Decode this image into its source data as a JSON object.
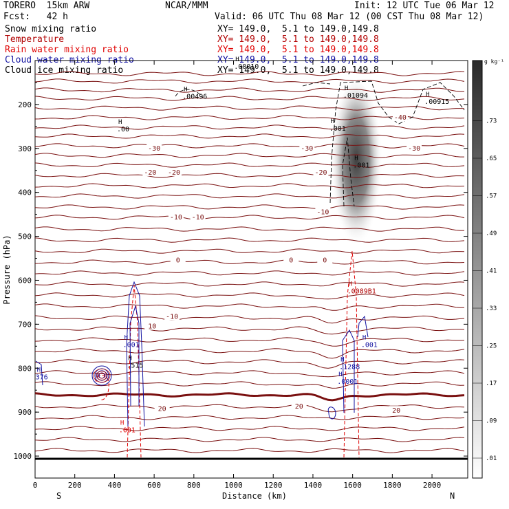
{
  "header": {
    "model": "TORERO  15km ARW",
    "center": "NCAR/MMM",
    "init": "Init: 12 UTC Tue 06 Mar 12",
    "fcst": "Fcst:   42 h",
    "valid": "Valid: 06 UTC Thu 08 Mar 12 (00 CST Thu 08 Mar 12)",
    "fields": [
      {
        "label": "Snow mixing ratio",
        "xy": "XY= 149.0,  5.1 to 149.0,149.8",
        "color": "#000000"
      },
      {
        "label": "Temperature",
        "xy": "XY= 149.0,  5.1 to 149.0,149.8",
        "color": "#b00000"
      },
      {
        "label": "Rain water mixing ratio",
        "xy": "XY= 149.0,  5.1 to 149.0,149.8",
        "color": "#e00000"
      },
      {
        "label": "Cloud water mixing ratio",
        "xy": "XY= 149.0,  5.1 to 149.0,149.8",
        "color": "#1010a0"
      },
      {
        "label": "Cloud ice mixing ratio",
        "xy": "XY= 149.0,  5.1 to 149.0,149.8",
        "color": "#000000"
      }
    ]
  },
  "chart_data": {
    "type": "contour cross-section",
    "xlabel": "Distance (km)",
    "ylabel": "Pressure (hPa)",
    "xlim": [
      0,
      2180
    ],
    "ylim": [
      1050,
      100
    ],
    "x_ticks": [
      0,
      200,
      400,
      600,
      800,
      1000,
      1200,
      1400,
      1600,
      1800,
      2000
    ],
    "y_ticks": [
      200,
      300,
      400,
      500,
      600,
      700,
      800,
      900,
      1000
    ],
    "x_end_labels": {
      "left": "S",
      "right": "N"
    },
    "colorbar": {
      "unit": "g kg⁻¹",
      "labels": [
        ".01",
        ".09",
        ".17",
        ".25",
        ".33",
        ".41",
        ".49",
        ".57",
        ".65",
        ".73"
      ]
    },
    "temperature_labels": [
      {
        "text": "-40",
        "x": 1840,
        "p": 230
      },
      {
        "text": "-30",
        "x": 600,
        "p": 300
      },
      {
        "text": "-30",
        "x": 1370,
        "p": 300
      },
      {
        "text": "-30",
        "x": 1910,
        "p": 300
      },
      {
        "text": "-20",
        "x": 580,
        "p": 355
      },
      {
        "text": "-20",
        "x": 700,
        "p": 355
      },
      {
        "text": "-20",
        "x": 1440,
        "p": 355
      },
      {
        "text": "-10",
        "x": 710,
        "p": 457
      },
      {
        "text": "-10",
        "x": 820,
        "p": 457
      },
      {
        "text": "-10",
        "x": 1450,
        "p": 445
      },
      {
        "text": "0",
        "x": 720,
        "p": 555
      },
      {
        "text": "0",
        "x": 1290,
        "p": 555
      },
      {
        "text": "0",
        "x": 1460,
        "p": 555
      },
      {
        "text": "10",
        "x": 590,
        "p": 705
      },
      {
        "text": "-10",
        "x": 690,
        "p": 683
      },
      {
        "text": "20",
        "x": 640,
        "p": 893
      },
      {
        "text": "20",
        "x": 1330,
        "p": 887
      },
      {
        "text": "20",
        "x": 1820,
        "p": 897
      }
    ],
    "maxima_labels": [
      {
        "text": ".00496",
        "x": 770,
        "p": 185,
        "color": "#000000"
      },
      {
        "text": ".01094",
        "x": 1580,
        "p": 183,
        "color": "#000000"
      },
      {
        "text": ".00915",
        "x": 1990,
        "p": 197,
        "color": "#000000"
      },
      {
        "text": ".00",
        "x": 440,
        "p": 260,
        "color": "#000000"
      },
      {
        "text": ".00010",
        "x": 1030,
        "p": 117,
        "color": "#000000"
      },
      {
        "text": ".001",
        "x": 1510,
        "p": 258,
        "color": "#000000"
      },
      {
        "text": ".001",
        "x": 1630,
        "p": 342,
        "color": "#000000"
      },
      {
        "text": ".0089B1",
        "x": 1600,
        "p": 628,
        "color": "#b00000"
      },
      {
        "text": ".001",
        "x": 470,
        "p": 750,
        "color": "#1010a0"
      },
      {
        "text": ".515",
        "x": 490,
        "p": 797,
        "color": "#000000"
      },
      {
        "text": ".1288",
        "x": 1560,
        "p": 800,
        "color": "#1010a0"
      },
      {
        "text": ".001",
        "x": 1670,
        "p": 750,
        "color": "#1010a0"
      },
      {
        "text": ".0001",
        "x": 1550,
        "p": 834,
        "color": "#1010a0"
      },
      {
        "text": "376",
        "x": 30,
        "p": 824,
        "color": "#1010a0"
      },
      {
        "text": ".001",
        "x": 450,
        "p": 944,
        "color": "#e00000"
      }
    ]
  }
}
